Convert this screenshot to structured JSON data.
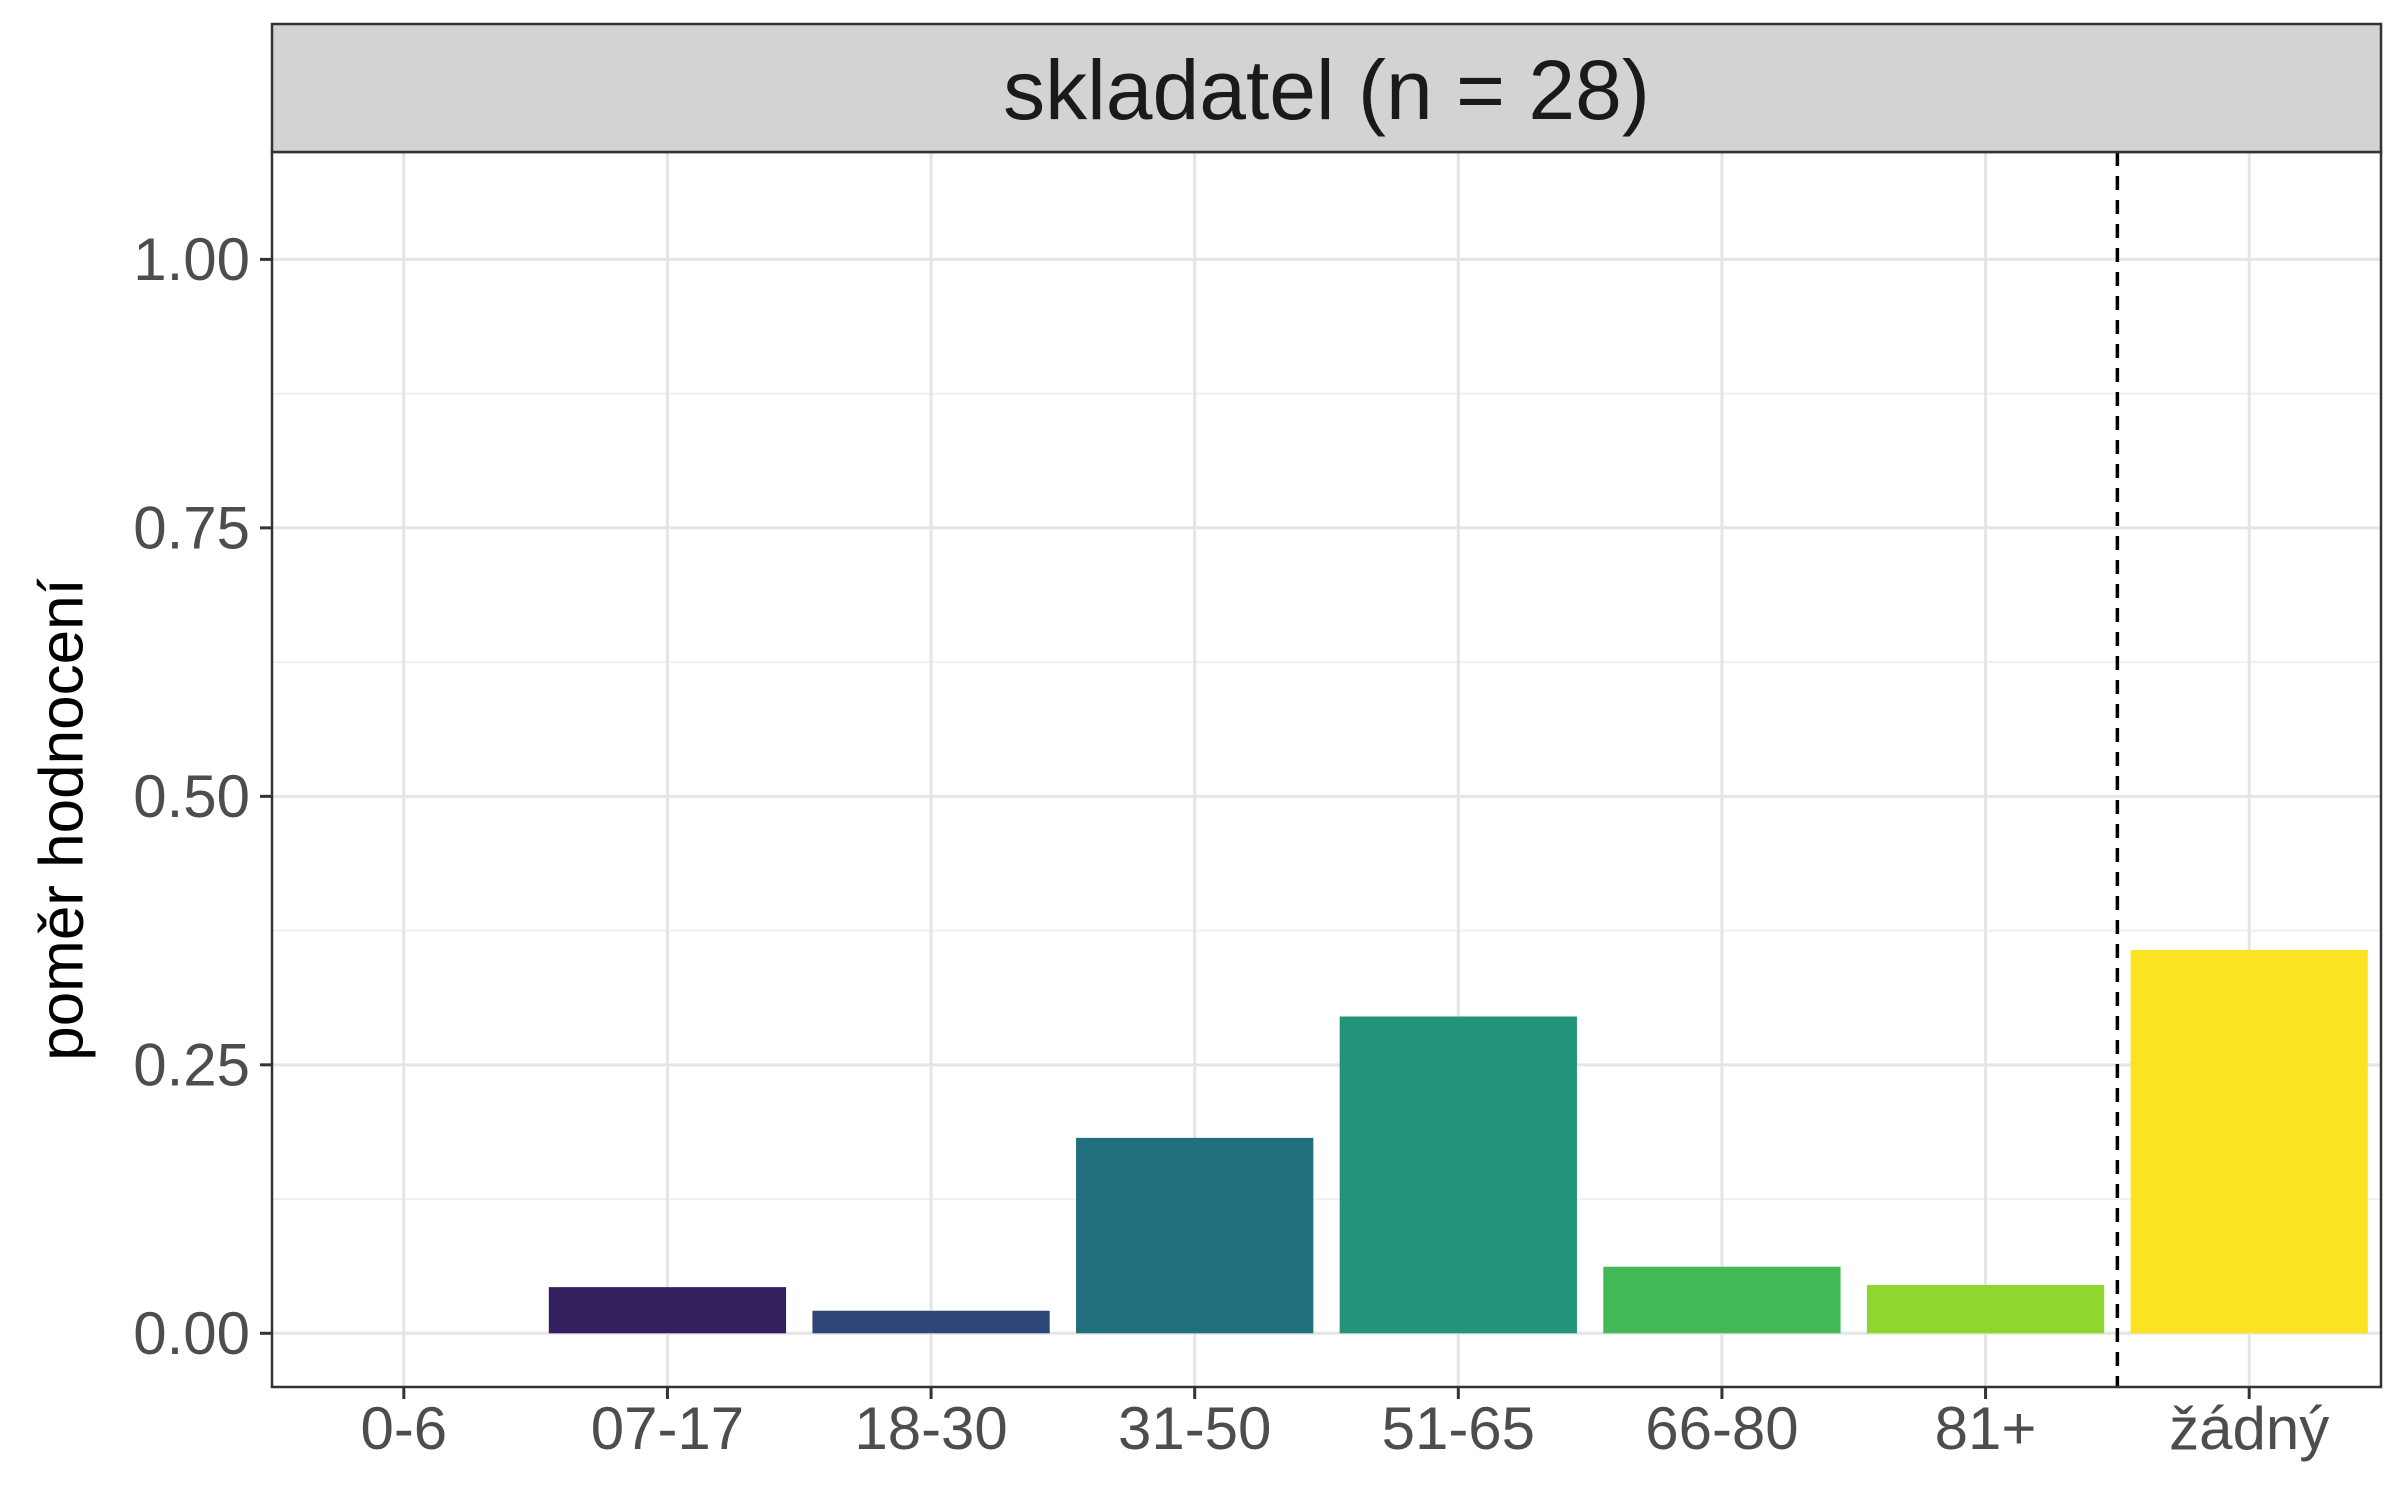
{
  "chart_data": {
    "type": "bar",
    "facet_label": "skladatel (n = 28)",
    "title": "",
    "xlabel": "",
    "ylabel": "poměr hodnocení",
    "categories": [
      "0-6",
      "07-17",
      "18-30",
      "31-50",
      "51-65",
      "66-80",
      "81+",
      "žádný"
    ],
    "values": [
      0.0,
      0.043,
      0.021,
      0.182,
      0.295,
      0.062,
      0.045,
      0.357
    ],
    "colors": [
      "#440154",
      "#35205f",
      "#2d4577",
      "#216e7c",
      "#21947a",
      "#42b857",
      "#8fd72f",
      "#fbe223"
    ],
    "ylim": [
      -0.05,
      1.1
    ],
    "yticks": [
      0.0,
      0.25,
      0.5,
      0.75,
      1.0
    ],
    "ytick_labels": [
      "0.00",
      "0.25",
      "0.50",
      "0.75",
      "1.00"
    ],
    "separator_after_index": 6,
    "grid": true
  }
}
